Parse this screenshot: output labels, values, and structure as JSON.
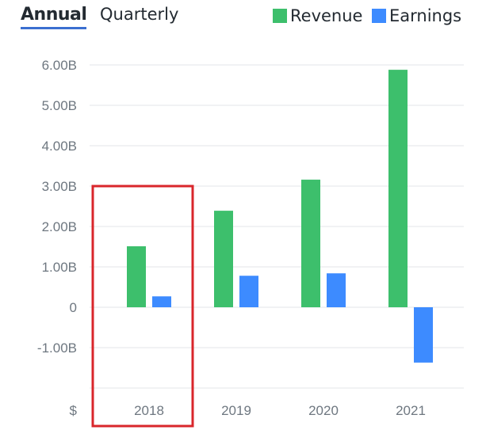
{
  "tabs": [
    {
      "label": "Annual",
      "active": true
    },
    {
      "label": "Quarterly",
      "active": false
    }
  ],
  "colors": {
    "revenue": "#3dbf6c",
    "earnings": "#3d8bff",
    "highlight": "#d9262b",
    "grid": "#e3e5e8"
  },
  "chart_data": {
    "type": "bar",
    "categories": [
      "2018",
      "2019",
      "2020",
      "2021"
    ],
    "series": [
      {
        "name": "Revenue",
        "values": [
          1.51,
          2.39,
          3.16,
          5.88
        ]
      },
      {
        "name": "Earnings",
        "values": [
          0.27,
          0.78,
          0.84,
          -1.37
        ]
      }
    ],
    "yticks": [
      6,
      5,
      4,
      3,
      2,
      1,
      0,
      -1
    ],
    "ytick_labels": [
      "6.00B",
      "5.00B",
      "4.00B",
      "3.00B",
      "2.00B",
      "1.00B",
      "0",
      "-1.00B"
    ],
    "ylim": [
      -2,
      6
    ],
    "unit_label": "$",
    "legend": "top-right",
    "highlighted_category": "2018",
    "grid": true
  }
}
